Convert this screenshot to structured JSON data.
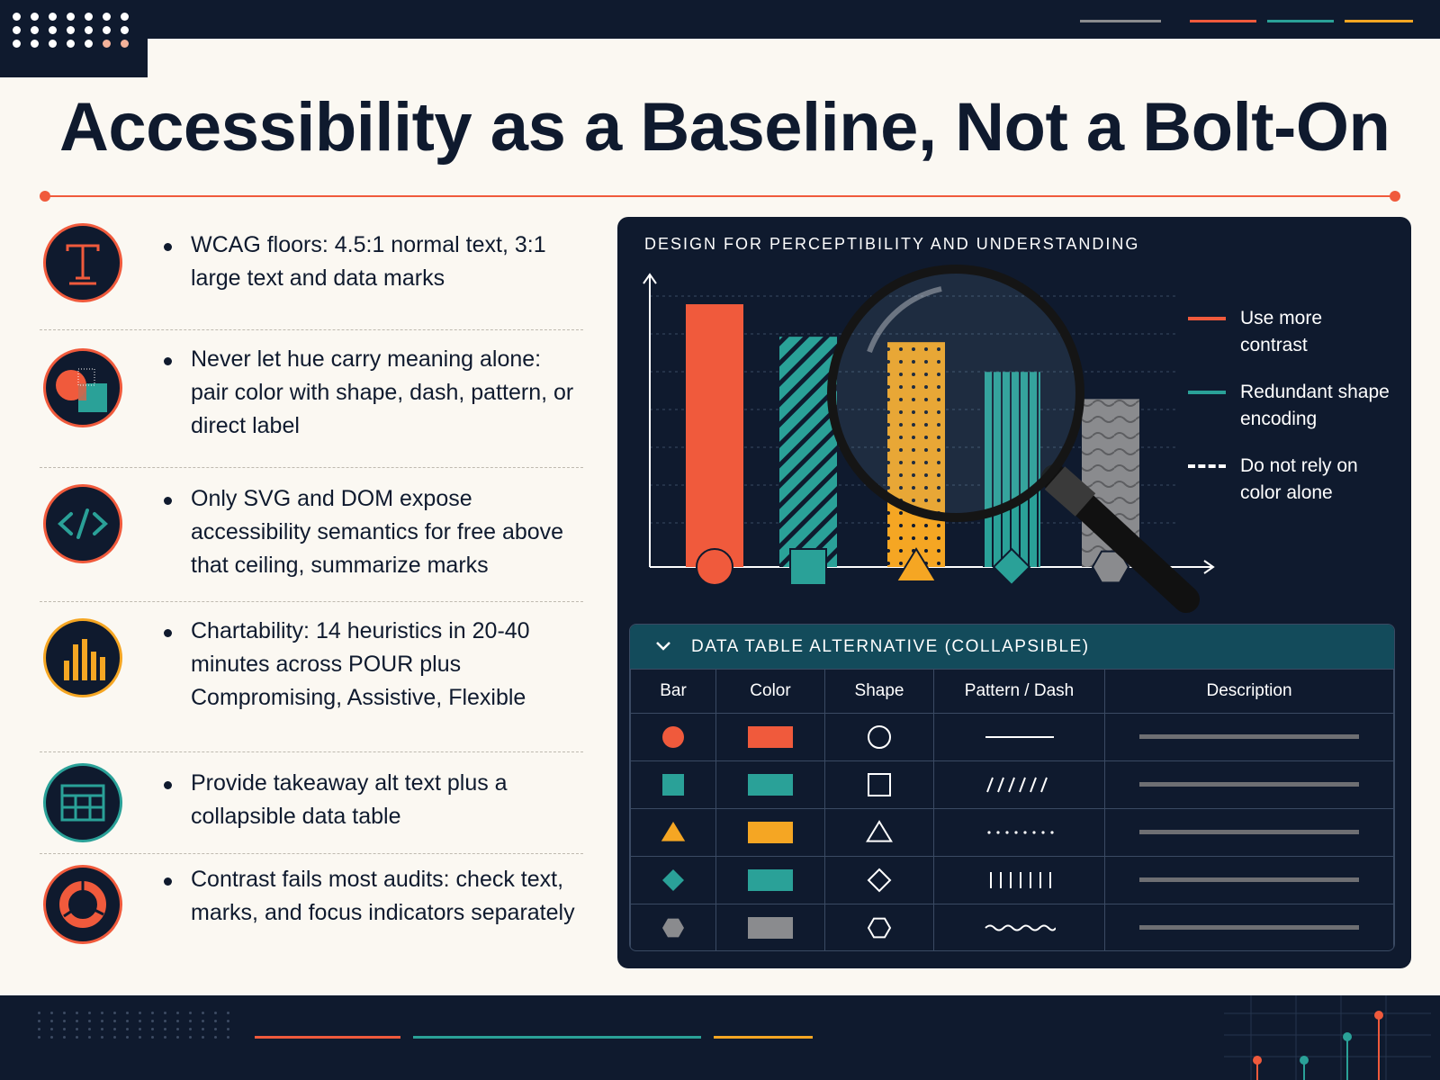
{
  "title": "Accessibility as a Baseline, Not a Bolt-On",
  "colors": {
    "navy": "#0f1a2e",
    "coral": "#f05a3c",
    "teal": "#2aa198",
    "yellow": "#f5a623",
    "gray": "#8a8b8e",
    "cream": "#fbf8f2"
  },
  "bullets": [
    {
      "icon": "typography-icon",
      "text": "WCAG floors: 4.5:1 normal text, 3:1 large text and data marks"
    },
    {
      "icon": "color-shape-icon",
      "text": "Never let hue carry meaning alone: pair color with shape, dash, pattern, or direct label"
    },
    {
      "icon": "code-icon",
      "text": "Only SVG and DOM expose accessibility semantics for free above that ceiling, summarize marks"
    },
    {
      "icon": "bar-chart-icon",
      "text": "Chartability: 14 heuristics in 20-40 minutes across POUR plus Compromising, Assistive, Flexible"
    },
    {
      "icon": "table-icon",
      "text": "Provide takeaway alt text plus a collapsible data table"
    },
    {
      "icon": "donut-chart-icon",
      "text": "Contrast fails most audits: check text, marks, and focus indicators separately"
    }
  ],
  "panel": {
    "title": "DESIGN FOR PERCEPTIBILITY AND UNDERSTANDING",
    "legend": [
      {
        "label": "Use more contrast",
        "style": "solid",
        "color": "#f05a3c"
      },
      {
        "label": "Redundant shape encoding",
        "style": "solid",
        "color": "#2aa198"
      },
      {
        "label": "Do not rely on color alone",
        "style": "dashed",
        "color": "#ffffff"
      }
    ],
    "magnifier_icon": "magnifying-glass-icon",
    "table_title": "DATA TABLE ALTERNATIVE (COLLAPSIBLE)",
    "table_columns": [
      "Bar",
      "Color",
      "Shape",
      "Pattern / Dash",
      "Description"
    ],
    "table_rows": [
      {
        "shape": "circle",
        "color": "#f05a3c",
        "pattern": "solid"
      },
      {
        "shape": "square",
        "color": "#2aa198",
        "pattern": "diagonal"
      },
      {
        "shape": "triangle",
        "color": "#f5a623",
        "pattern": "dotted"
      },
      {
        "shape": "diamond",
        "color": "#2aa198",
        "pattern": "vertical"
      },
      {
        "shape": "hexagon",
        "color": "#8a8b8e",
        "pattern": "wavy"
      }
    ]
  },
  "chart_data": {
    "type": "bar",
    "title": "",
    "xlabel": "",
    "ylabel": "",
    "ylim": [
      0,
      1
    ],
    "grid": true,
    "legend_position": "right",
    "series": [
      {
        "name": "",
        "values": [
          0.97,
          0.85,
          0.83,
          0.72,
          0.62
        ]
      }
    ],
    "bar_colors": [
      "#f05a3c",
      "#2aa198",
      "#f5a623",
      "#2aa198",
      "#8a8b8e"
    ],
    "bar_patterns": [
      "solid",
      "diagonal",
      "dotted",
      "vertical",
      "wavy"
    ],
    "bar_markers": [
      "circle",
      "square",
      "triangle",
      "diamond",
      "hexagon"
    ]
  }
}
